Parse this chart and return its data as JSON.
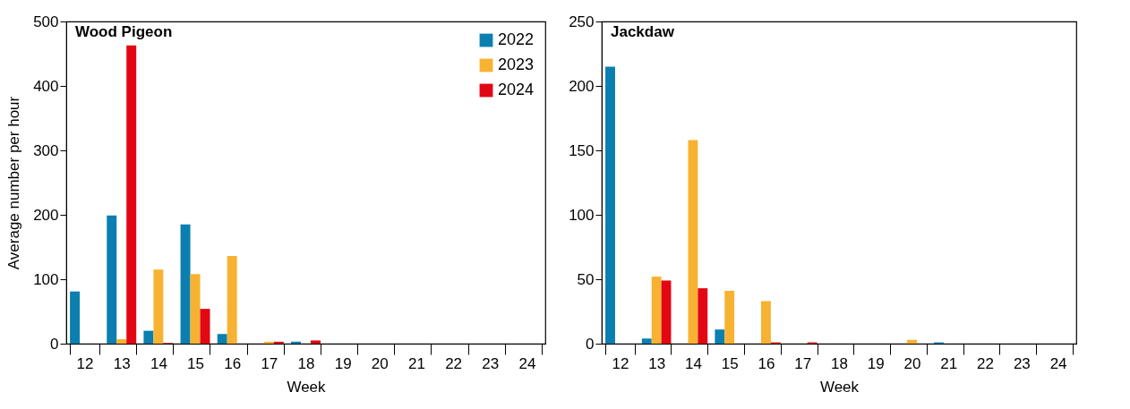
{
  "chart_data": [
    {
      "type": "bar",
      "title": "Wood Pigeon",
      "xlabel": "Week",
      "ylabel": "Average number per hour",
      "categories": [
        "12",
        "13",
        "14",
        "15",
        "16",
        "17",
        "18",
        "19",
        "20",
        "21",
        "22",
        "23",
        "24"
      ],
      "series": [
        {
          "name": "2022",
          "color": "#0a7fb0",
          "values": [
            81,
            199,
            20,
            185,
            15,
            0,
            3,
            0,
            0,
            0,
            0,
            0,
            0
          ]
        },
        {
          "name": "2023",
          "color": "#f7b232",
          "values": [
            0,
            7,
            115,
            108,
            136,
            3,
            0,
            0,
            0,
            0,
            0,
            0,
            0
          ]
        },
        {
          "name": "2024",
          "color": "#e30613",
          "values": [
            0,
            463,
            1,
            54,
            0,
            3,
            5,
            0,
            0,
            0,
            0,
            0,
            0
          ]
        }
      ],
      "ylim": [
        0,
        500
      ],
      "yticks": [
        0,
        100,
        200,
        300,
        400,
        500
      ],
      "grid": false,
      "legend": "top right"
    },
    {
      "type": "bar",
      "title": "Jackdaw",
      "xlabel": "Week",
      "categories": [
        "12",
        "13",
        "14",
        "15",
        "16",
        "17",
        "18",
        "19",
        "20",
        "21",
        "22",
        "23",
        "24"
      ],
      "series": [
        {
          "color": "#0a7fb0",
          "values": [
            215,
            4,
            0,
            11,
            0,
            0,
            0,
            0,
            0,
            1,
            0,
            0,
            0
          ]
        },
        {
          "color": "#f7b232",
          "values": [
            0,
            52,
            158,
            41,
            33,
            0,
            0,
            0,
            3,
            0,
            0,
            0,
            0
          ]
        },
        {
          "color": "#e30613",
          "values": [
            0,
            49,
            43,
            0,
            1,
            1,
            0,
            0,
            0,
            0,
            0,
            0,
            0
          ]
        }
      ],
      "ylim": [
        0,
        250
      ],
      "yticks": [
        0,
        50,
        100,
        150,
        200,
        250
      ],
      "grid": false
    }
  ]
}
